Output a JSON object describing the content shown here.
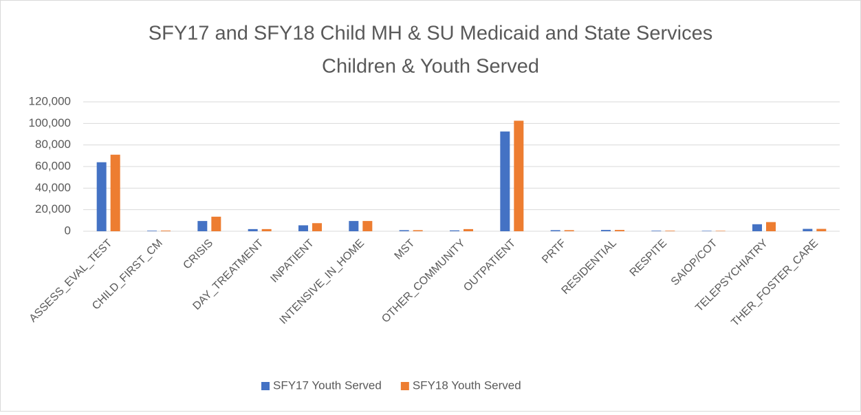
{
  "chart_data": {
    "type": "bar",
    "title": [
      "SFY17 and SFY18  Child MH & SU Medicaid and State Services",
      "Children & Youth Served"
    ],
    "categories": [
      "ASSESS_EVAL_TEST",
      "CHILD_FIRST_CM",
      "CRISIS",
      "DAY_TREATMENT",
      "INPATIENT",
      "INTENSIVE_IN_HOME",
      "MST",
      "OTHER_COMMUNITY",
      "OUTPATIENT",
      "PRTF",
      "RESIDENTIAL",
      "RESPITE",
      "SAIOP/COT",
      "TELEPSYCHIATRY",
      "THER_FOSTER_CARE"
    ],
    "series": [
      {
        "name": "SFY17 Youth Served",
        "color": "#4472c4",
        "values": [
          64000,
          500,
          9500,
          2000,
          5500,
          9500,
          1000,
          800,
          92500,
          1000,
          1200,
          500,
          400,
          6500,
          2200
        ]
      },
      {
        "name": "SFY18 Youth Served",
        "color": "#ed7d31",
        "values": [
          71000,
          600,
          13500,
          2000,
          7500,
          9500,
          1000,
          2000,
          102500,
          1000,
          1200,
          500,
          400,
          8500,
          2200
        ]
      }
    ],
    "ylim": [
      0,
      120000
    ],
    "yticks": [
      0,
      {
        "value": 20000,
        "label": "20,000"
      },
      {
        "value": 40000,
        "label": "40,000"
      },
      {
        "value": 60000,
        "label": "60,000"
      },
      {
        "value": 80000,
        "label": "80,000"
      },
      {
        "value": 100000,
        "label": "100,000"
      },
      {
        "value": 120000,
        "label": "120,000"
      }
    ],
    "grid": true,
    "legend": "bottom"
  }
}
